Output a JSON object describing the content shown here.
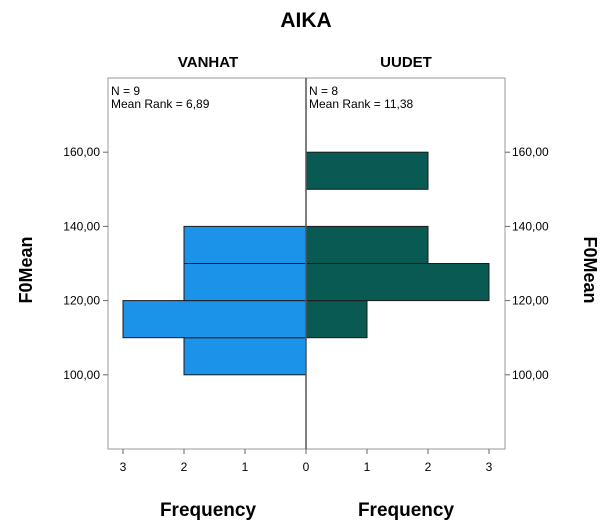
{
  "chart_data": {
    "type": "bar",
    "orientation": "horizontal-back-to-back",
    "title": "AIKA",
    "ylabel": "F0Mean",
    "xlabel": "Frequency",
    "ylim": [
      80,
      180
    ],
    "yticks": [
      "100,00",
      "120,00",
      "140,00",
      "160,00"
    ],
    "ytick_values": [
      100,
      120,
      140,
      160
    ],
    "xlim": [
      0,
      3
    ],
    "xticks": [
      "0",
      "1",
      "2",
      "3"
    ],
    "bin_width": 10,
    "groups": [
      {
        "name": "VANHAT",
        "n_text": "N = 9",
        "mean_rank_text": "Mean Rank = 6,89",
        "color": "#1a93e8",
        "bins": [
          {
            "from": 100,
            "to": 110,
            "count": 2
          },
          {
            "from": 110,
            "to": 120,
            "count": 3
          },
          {
            "from": 120,
            "to": 130,
            "count": 2
          },
          {
            "from": 130,
            "to": 140,
            "count": 2
          }
        ]
      },
      {
        "name": "UUDET",
        "n_text": "N = 8",
        "mean_rank_text": "Mean Rank = 11,38",
        "color": "#085a53",
        "bins": [
          {
            "from": 110,
            "to": 120,
            "count": 1
          },
          {
            "from": 120,
            "to": 130,
            "count": 3
          },
          {
            "from": 130,
            "to": 140,
            "count": 2
          },
          {
            "from": 150,
            "to": 160,
            "count": 2
          }
        ]
      }
    ]
  }
}
